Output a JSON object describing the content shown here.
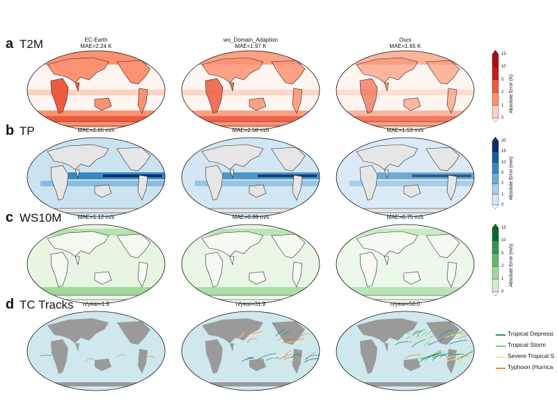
{
  "chart_data": [
    {
      "type": "heatmap",
      "letter": "a",
      "variable": "T2M",
      "panels": [
        {
          "name": "EC-Earth",
          "mae_label": "MAE=2.24 K"
        },
        {
          "name": "wo_Domain_Adaption",
          "mae_label": "MAE=1.97 K"
        },
        {
          "name": "Ours",
          "mae_label": "MAE=1.65 K"
        }
      ],
      "colorbar": {
        "label": "Absolute Error (K)",
        "ticks": [
          "0",
          "1",
          "2",
          "5",
          "10",
          "15"
        ],
        "colors": [
          "#fff5f0",
          "#fdd0c0",
          "#fc9272",
          "#ef5a3f",
          "#cb181d",
          "#a50f15"
        ]
      }
    },
    {
      "type": "heatmap",
      "letter": "b",
      "variable": "TP",
      "panels": [
        {
          "name": "",
          "mae_label": "MAE=2.65 mm"
        },
        {
          "name": "",
          "mae_label": "MAE=2.58 mm"
        },
        {
          "name": "",
          "mae_label": "MAE=1.53 mm"
        }
      ],
      "colorbar": {
        "label": "Absolute Error (mm)",
        "ticks": [
          "0",
          "1",
          "2",
          "5",
          "10",
          "15",
          "20"
        ],
        "colors": [
          "#f7fbff",
          "#d6e6f5",
          "#a8cde6",
          "#6baed6",
          "#3787c0",
          "#1161a6",
          "#08306b"
        ]
      }
    },
    {
      "type": "heatmap",
      "letter": "c",
      "variable": "WS10M",
      "panels": [
        {
          "name": "",
          "mae_label": "MAE=1.12 m/s"
        },
        {
          "name": "",
          "mae_label": "MAE=0.99 m/s"
        },
        {
          "name": "",
          "mae_label": "MAE=0.75 m/s"
        }
      ],
      "colorbar": {
        "label": "Absolute Error (m/s)",
        "ticks": [
          "0",
          "1",
          "2",
          "5",
          "10",
          "15"
        ],
        "colors": [
          "#f7fcf5",
          "#d3eecd",
          "#a1d99b",
          "#60ba6c",
          "#2e964f",
          "#006d2c"
        ]
      }
    },
    {
      "type": "scatter",
      "letter": "d",
      "variable": "TC Tracks",
      "panels": [
        {
          "name": "",
          "mae_label": "n/year=1.9"
        },
        {
          "name": "",
          "mae_label": "n/year=31.9"
        },
        {
          "name": "",
          "mae_label": "n/year=50.0"
        }
      ],
      "legend": [
        {
          "label": "Tropical Depressi",
          "color": "#2a8a80"
        },
        {
          "label": "Tropical Storm",
          "color": "#6fcf6f"
        },
        {
          "label": "Severe Tropical S",
          "color": "#f2e6a6"
        },
        {
          "label": "Typhoon (Hurrica",
          "color": "#e98a3a"
        }
      ],
      "legend_position": "right"
    }
  ]
}
